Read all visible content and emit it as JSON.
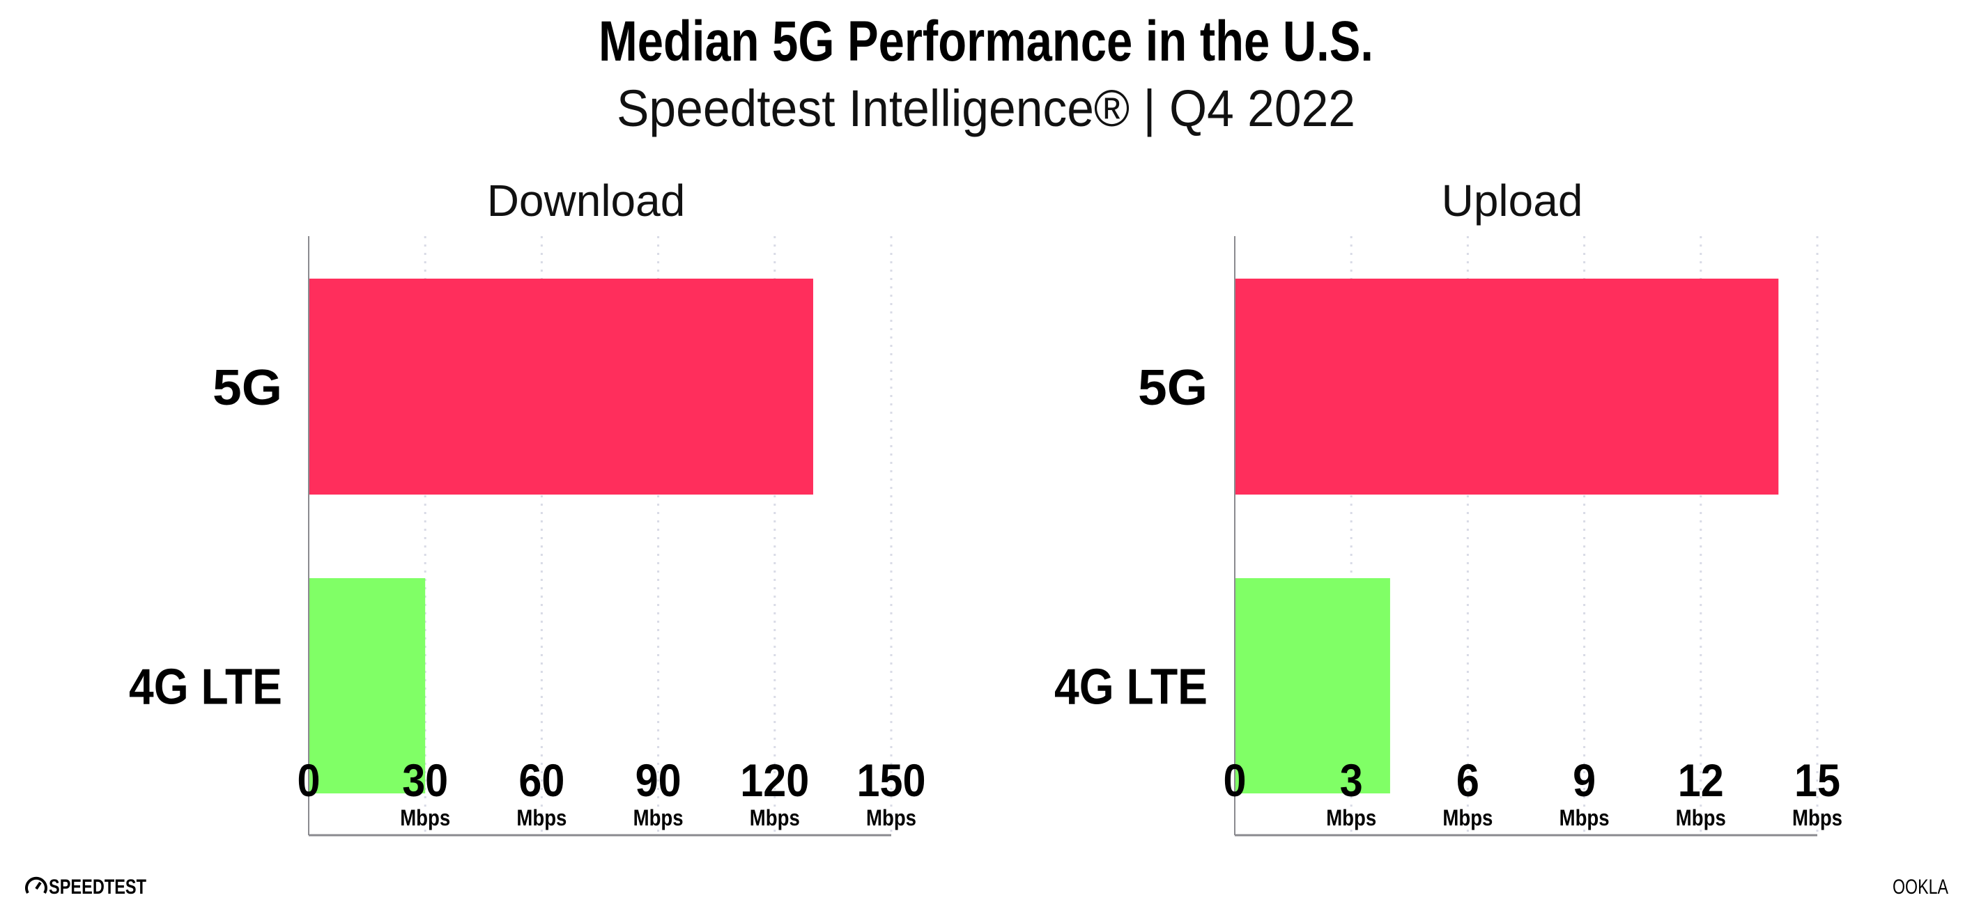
{
  "title": "Median 5G Performance in the U.S.",
  "subtitle": "Speedtest Intelligence® | Q4 2022",
  "footer": {
    "left_logo": "SPEEDTEST",
    "right_logo": "OOKLA"
  },
  "colors": {
    "5G": "#ff2e5c",
    "4G LTE": "#80ff66",
    "axis": "#8a8a8f",
    "grid": "#d9dbe6"
  },
  "chart_data": [
    {
      "type": "bar",
      "orientation": "horizontal",
      "title": "Download",
      "categories": [
        "5G",
        "4G LTE"
      ],
      "values": [
        129.9,
        30.0
      ],
      "xlim": [
        0,
        150
      ],
      "ticks": [
        0,
        30,
        60,
        90,
        120,
        150
      ],
      "tick_labels": [
        "0",
        "30",
        "60",
        "90",
        "120",
        "150"
      ],
      "tick_units": [
        "",
        "Mbps",
        "Mbps",
        "Mbps",
        "Mbps",
        "Mbps"
      ],
      "grid": true
    },
    {
      "type": "bar",
      "orientation": "horizontal",
      "title": "Upload",
      "categories": [
        "5G",
        "4G LTE"
      ],
      "values": [
        14.0,
        4.0
      ],
      "xlim": [
        0,
        15
      ],
      "ticks": [
        0,
        3,
        6,
        9,
        12,
        15
      ],
      "tick_labels": [
        "0",
        "3",
        "6",
        "9",
        "12",
        "15"
      ],
      "tick_units": [
        "",
        "Mbps",
        "Mbps",
        "Mbps",
        "Mbps",
        "Mbps"
      ],
      "grid": true
    }
  ]
}
